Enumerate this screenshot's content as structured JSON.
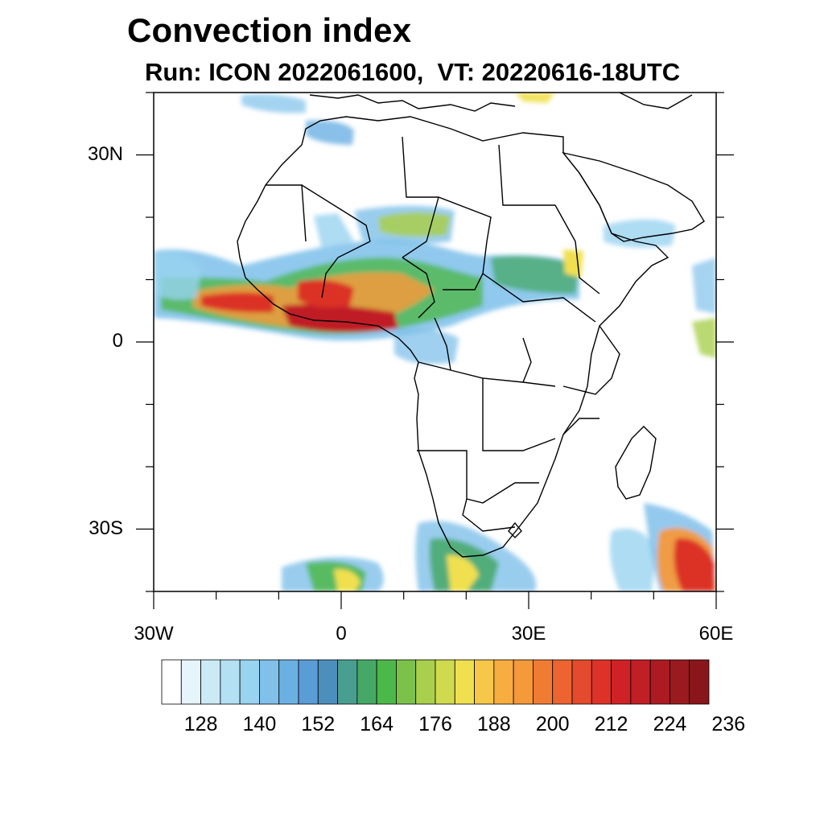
{
  "title": "Convection index",
  "subtitle": "Run: ICON 2022061600,  VT: 20220616-18UTC",
  "map": {
    "projection": "lat-lon",
    "lon_range": [
      -30,
      60
    ],
    "lat_range": [
      -40,
      40
    ],
    "y_ticks": [
      {
        "lat": 30,
        "label": "30N"
      },
      {
        "lat": 0,
        "label": "0"
      },
      {
        "lat": -30,
        "label": "30S"
      }
    ],
    "x_ticks": [
      {
        "lon": -30,
        "label": "30W"
      },
      {
        "lon": 0,
        "label": "0"
      },
      {
        "lon": 30,
        "label": "30E"
      },
      {
        "lon": 60,
        "label": "60E"
      }
    ]
  },
  "colorbar": {
    "labels": [
      "128",
      "140",
      "152",
      "164",
      "176",
      "188",
      "200",
      "212",
      "224",
      "236"
    ],
    "colors": [
      "#ffffff",
      "#e6f4fb",
      "#cceaf6",
      "#b3e0f3",
      "#98d3f0",
      "#80c0ea",
      "#6bb0e3",
      "#5a9cd6",
      "#4c8fbd",
      "#4a9e90",
      "#46a866",
      "#4db84a",
      "#7cc24a",
      "#a9cf4d",
      "#d0da4f",
      "#f0e050",
      "#f6c748",
      "#f8ad40",
      "#f49a3a",
      "#f07c34",
      "#ec6430",
      "#e44a2c",
      "#dc3228",
      "#cf2226",
      "#c01f25",
      "#ac1b22",
      "#9a1a1f",
      "#8a161b"
    ]
  }
}
